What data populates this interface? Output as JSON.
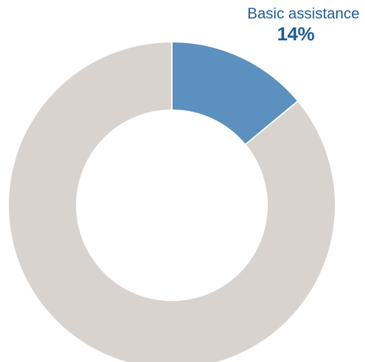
{
  "chart_data": {
    "type": "pie",
    "donut": true,
    "title": "",
    "series": [
      {
        "name": "Basic assistance",
        "value": 14,
        "value_label": "14%",
        "color": "#5b90bf",
        "highlighted": true
      },
      {
        "name": "",
        "value": 86,
        "value_label": "",
        "color": "#d9d3cf",
        "highlighted": false
      }
    ],
    "legend": "callout-top-right",
    "grid": false
  },
  "callout": {
    "label": "Basic assistance",
    "value": "14%",
    "text_color": "#1f5f99"
  }
}
